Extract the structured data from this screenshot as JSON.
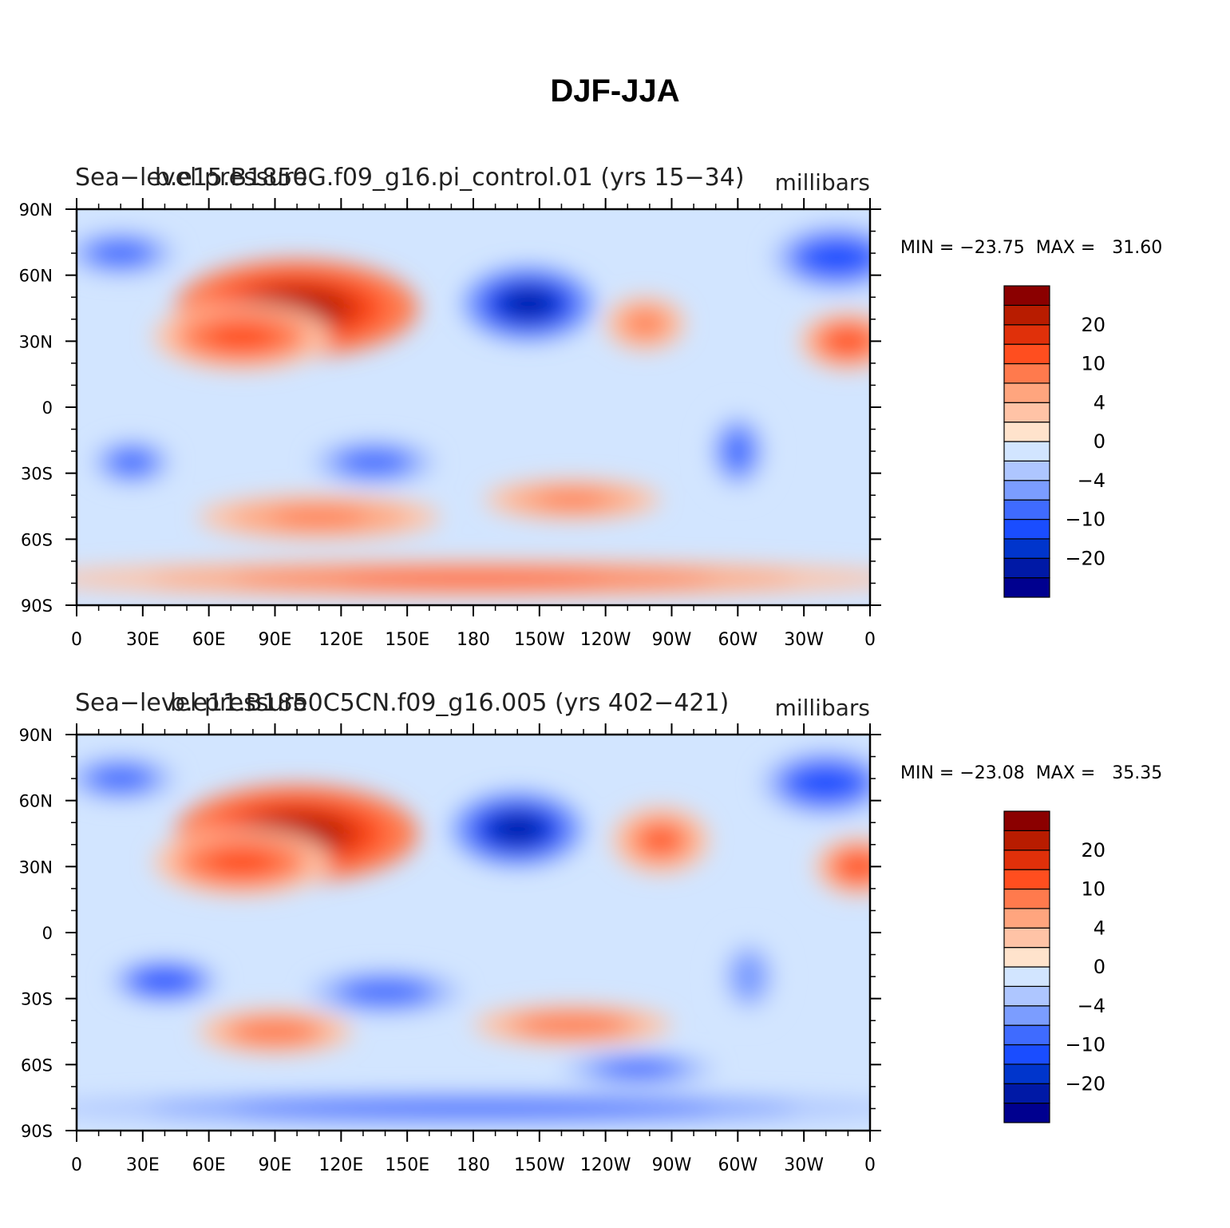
{
  "figure_title": "DJF-JJA",
  "colorbar": {
    "colors": [
      "#00008f",
      "#0019a6",
      "#0035cc",
      "#1a4dff",
      "#3f6bff",
      "#7b9dff",
      "#aec6ff",
      "#d2e5ff",
      "#ffe3cc",
      "#ffc3a6",
      "#ffa57e",
      "#ff7a4d",
      "#ff4e1f",
      "#e0300a",
      "#b81c00",
      "#8b0000"
    ],
    "labels": [
      "−20",
      "−10",
      "−4",
      "0",
      "4",
      "10",
      "20"
    ]
  },
  "chart_data": [
    {
      "type": "heatmap",
      "left_title": "Sea−level pressure",
      "center_title": "b.e15.B1850G.f09_g16.pi_control.01 (yrs 15−34)",
      "units": "millibars",
      "min_max_text": "MIN = −23.75  MAX =   31.60",
      "min": -23.75,
      "max": 31.6,
      "lon_ticks": [
        "0",
        "30E",
        "60E",
        "90E",
        "120E",
        "150E",
        "180",
        "150W",
        "120W",
        "90W",
        "60W",
        "30W",
        "0"
      ],
      "lat_ticks": [
        "90N",
        "60N",
        "30N",
        "0",
        "30S",
        "60S",
        "90S"
      ],
      "xlim": [
        0,
        360
      ],
      "ylim": [
        -90,
        90
      ],
      "features": [
        {
          "lon": 100,
          "lat": 45,
          "rx": 55,
          "ry": 22,
          "v": 24
        },
        {
          "lon": 75,
          "lat": 32,
          "rx": 40,
          "ry": 15,
          "v": 12
        },
        {
          "lon": 205,
          "lat": 47,
          "rx": 30,
          "ry": 17,
          "v": -23
        },
        {
          "lon": 345,
          "lat": 68,
          "rx": 30,
          "ry": 15,
          "v": -14
        },
        {
          "lon": 20,
          "lat": 70,
          "rx": 25,
          "ry": 10,
          "v": -10
        },
        {
          "lon": 258,
          "lat": 38,
          "rx": 18,
          "ry": 12,
          "v": 8
        },
        {
          "lon": 350,
          "lat": 30,
          "rx": 22,
          "ry": 13,
          "v": 12
        },
        {
          "lon": 25,
          "lat": -25,
          "rx": 18,
          "ry": 10,
          "v": -10
        },
        {
          "lon": 135,
          "lat": -25,
          "rx": 28,
          "ry": 10,
          "v": -9
        },
        {
          "lon": 300,
          "lat": -20,
          "rx": 15,
          "ry": 20,
          "v": -8
        },
        {
          "lon": 225,
          "lat": -42,
          "rx": 40,
          "ry": 9,
          "v": 8
        },
        {
          "lon": 110,
          "lat": -50,
          "rx": 55,
          "ry": 10,
          "v": 8
        },
        {
          "lon": 180,
          "lat": -78,
          "rx": 200,
          "ry": 8,
          "v": 11
        }
      ]
    },
    {
      "type": "heatmap",
      "left_title": "Sea−level pressure",
      "center_title": "b.e11.B1850C5CN.f09_g16.005 (yrs 402−421)",
      "units": "millibars",
      "min_max_text": "MIN = −23.08  MAX =   35.35",
      "min": -23.08,
      "max": 35.35,
      "lon_ticks": [
        "0",
        "30E",
        "60E",
        "90E",
        "120E",
        "150E",
        "180",
        "150W",
        "120W",
        "90W",
        "60W",
        "30W",
        "0"
      ],
      "lat_ticks": [
        "90N",
        "60N",
        "30N",
        "0",
        "30S",
        "60S",
        "90S"
      ],
      "xlim": [
        0,
        360
      ],
      "ylim": [
        -90,
        90
      ],
      "features": [
        {
          "lon": 100,
          "lat": 45,
          "rx": 55,
          "ry": 22,
          "v": 24
        },
        {
          "lon": 75,
          "lat": 32,
          "rx": 40,
          "ry": 15,
          "v": 12
        },
        {
          "lon": 200,
          "lat": 47,
          "rx": 30,
          "ry": 17,
          "v": -22
        },
        {
          "lon": 340,
          "lat": 68,
          "rx": 30,
          "ry": 15,
          "v": -14
        },
        {
          "lon": 20,
          "lat": 70,
          "rx": 25,
          "ry": 10,
          "v": -10
        },
        {
          "lon": 265,
          "lat": 42,
          "rx": 22,
          "ry": 15,
          "v": 11
        },
        {
          "lon": 355,
          "lat": 30,
          "rx": 20,
          "ry": 13,
          "v": 12
        },
        {
          "lon": 40,
          "lat": -22,
          "rx": 25,
          "ry": 10,
          "v": -12
        },
        {
          "lon": 140,
          "lat": -27,
          "rx": 35,
          "ry": 10,
          "v": -10
        },
        {
          "lon": 305,
          "lat": -20,
          "rx": 15,
          "ry": 20,
          "v": -6
        },
        {
          "lon": 225,
          "lat": -42,
          "rx": 45,
          "ry": 9,
          "v": 10
        },
        {
          "lon": 90,
          "lat": -45,
          "rx": 35,
          "ry": 10,
          "v": 10
        },
        {
          "lon": 255,
          "lat": -62,
          "rx": 35,
          "ry": 7,
          "v": -11
        },
        {
          "lon": 180,
          "lat": -80,
          "rx": 200,
          "ry": 7,
          "v": -9
        }
      ]
    }
  ]
}
